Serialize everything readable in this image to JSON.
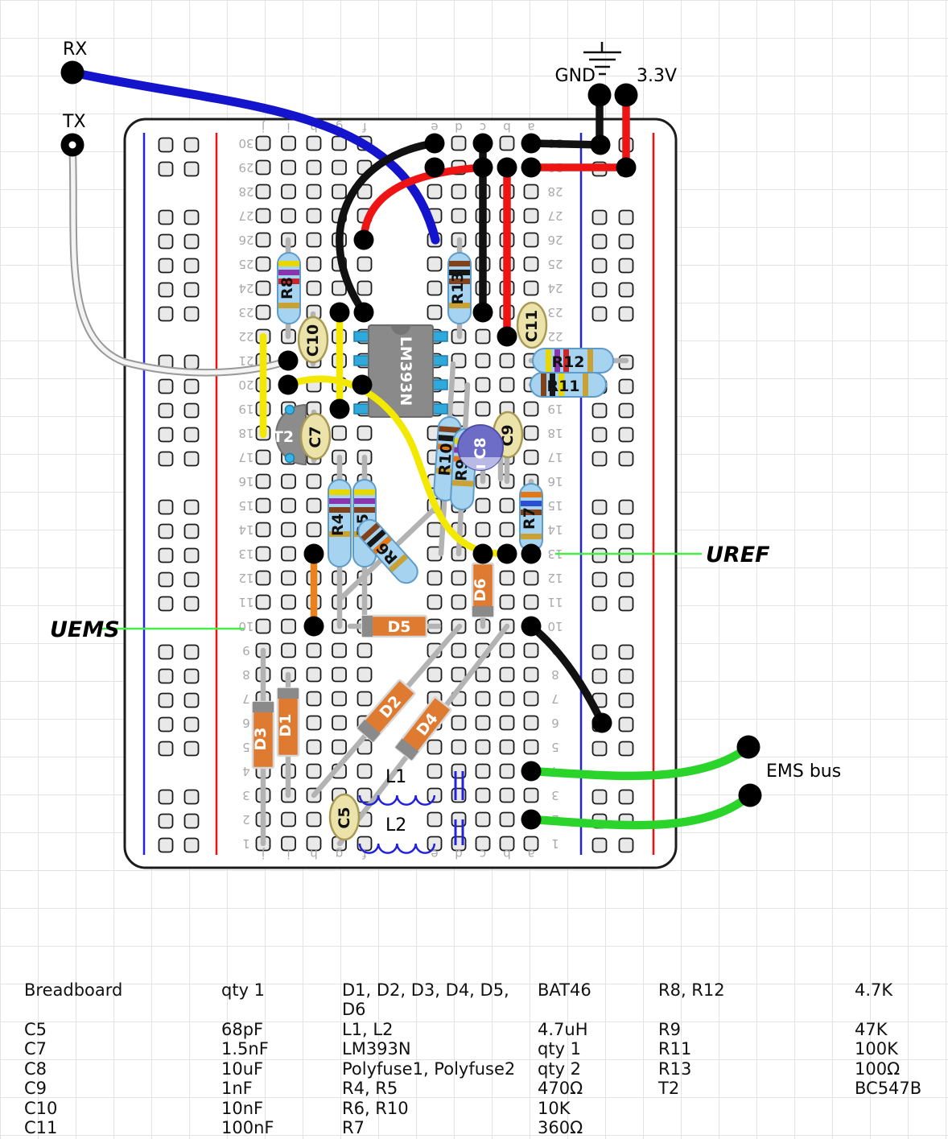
{
  "labels": {
    "rx": "RX",
    "tx": "TX",
    "gnd": "GND",
    "v33": "3.3V",
    "uref": "UREF",
    "uems": "UEMS",
    "ems_bus": "EMS bus"
  },
  "board": {
    "row_count": 30,
    "column_letters": [
      "j",
      "i",
      "h",
      "g",
      "f",
      "e",
      "d",
      "c",
      "b",
      "a"
    ]
  },
  "components": {
    "ic": "LM393N",
    "t2": "T2",
    "r4": "R4",
    "r5": "R5",
    "r6": "R6",
    "r7": "R7",
    "r8": "R8",
    "r9": "R9",
    "r10": "R10",
    "r11": "R11",
    "r12": "R12",
    "r13": "R13",
    "d1": "D1",
    "d2": "D2",
    "d3": "D3",
    "d4": "D4",
    "d5": "D5",
    "d6": "D6",
    "c5": "C5",
    "c7": "C7",
    "c8": "C8",
    "c9": "C9",
    "c10": "C10",
    "c11": "C11",
    "l1": "L1",
    "l2": "L2",
    "c8_minus": "-"
  },
  "colors": {
    "rx_wire": "#1414cc",
    "tx_wire": "#f4f4f4",
    "black_wire": "#111111",
    "red_wire": "#ee1414",
    "yellow_wire": "#f2e800",
    "orange_wire": "#e8821e",
    "green_wire": "#2bd42b",
    "callout": "#44ee44",
    "resistor_body": "#a6d3f0",
    "diode_body": "#df7b31",
    "cap_body": "#ece3ab",
    "c8_body": "#6d6dc8",
    "ic_body": "#8a8a8a",
    "rail_blue": "#2222dd",
    "rail_red": "#ee1111",
    "coil_blue": "#2222dd"
  },
  "resistor_bands": {
    "r4": [
      "#e8d800",
      "#8a35b0",
      "#82431c",
      "#c9a233"
    ],
    "r5": [
      "#e8d800",
      "#8a35b0",
      "#82431c",
      "#c9a233"
    ],
    "r6": [
      "#82431c",
      "#161616",
      "#e07818",
      "#c9a233"
    ],
    "r7": [
      "#e07818",
      "#2a4fd0",
      "#82431c",
      "#c9a233"
    ],
    "r8": [
      "#e8d800",
      "#8a35b0",
      "#cc2727",
      "#c9a233"
    ],
    "r9": [
      "#e8d800",
      "#8a35b0",
      "#e07818",
      "#c9a233"
    ],
    "r10": [
      "#82431c",
      "#161616",
      "#e07818",
      "#c9a233"
    ],
    "r11": [
      "#82431c",
      "#161616",
      "#e8d800",
      "#c9a233"
    ],
    "r12": [
      "#e8d800",
      "#8a35b0",
      "#cc2727",
      "#c9a233"
    ],
    "r13": [
      "#82431c",
      "#161616",
      "#82431c",
      "#c9a233"
    ]
  },
  "parts_table": {
    "rows": [
      [
        "Breadboard",
        "qty 1",
        "D1, D2, D3, D4, D5, D6",
        "BAT46",
        "R8, R12",
        "4.7K"
      ],
      [
        "C5",
        "68pF",
        "L1, L2",
        "4.7uH",
        "R9",
        "47K"
      ],
      [
        "C7",
        "1.5nF",
        "LM393N",
        "qty 1",
        "R11",
        "100K"
      ],
      [
        "C8",
        "10uF",
        "Polyfuse1, Polyfuse2",
        "qty 2",
        "R13",
        "100Ω"
      ],
      [
        "C9",
        "1nF",
        "R4, R5",
        "470Ω",
        "T2",
        "BC547B"
      ],
      [
        "C10",
        "10nF",
        "R6, R10",
        "10K",
        "",
        ""
      ],
      [
        "C11",
        "100nF",
        "R7",
        "360Ω",
        "",
        ""
      ]
    ]
  }
}
